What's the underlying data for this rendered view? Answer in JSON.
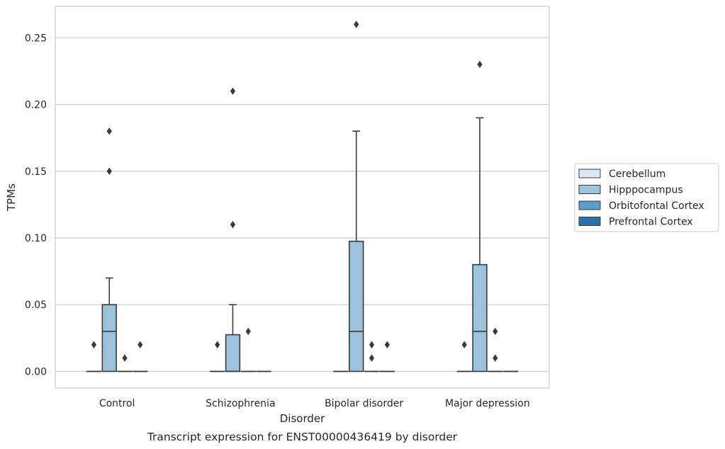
{
  "caption": "Transcript expression for ENST00000436419 by disorder",
  "chart_data": {
    "type": "box",
    "xlabel": "Disorder",
    "ylabel": "TPMs",
    "ylim": [
      -0.0125,
      0.2735
    ],
    "yticks": [
      0.0,
      0.05,
      0.1,
      0.15,
      0.2,
      0.25
    ],
    "ytick_labels": [
      "0.00",
      "0.05",
      "0.10",
      "0.15",
      "0.20",
      "0.25"
    ],
    "grid": true,
    "legend_position": "right",
    "categories": [
      "Control",
      "Schizophrenia",
      "Bipolar disorder",
      "Major depression"
    ],
    "series": [
      {
        "name": "Cerebellum",
        "color": "#dbe9f6",
        "boxes": [
          {
            "q1": 0,
            "median": 0,
            "q3": 0,
            "whislo": 0,
            "whishi": 0,
            "fliers": [
              0.02
            ]
          },
          {
            "q1": 0,
            "median": 0,
            "q3": 0,
            "whislo": 0,
            "whishi": 0,
            "fliers": [
              0.02
            ]
          },
          {
            "q1": 0,
            "median": 0,
            "q3": 0,
            "whislo": 0,
            "whishi": 0,
            "fliers": []
          },
          {
            "q1": 0,
            "median": 0,
            "q3": 0,
            "whislo": 0,
            "whishi": 0,
            "fliers": [
              0.02
            ]
          }
        ]
      },
      {
        "name": "Hipppocampus",
        "color": "#9cc3db",
        "boxes": [
          {
            "q1": 0,
            "median": 0.03,
            "q3": 0.05,
            "whislo": 0,
            "whishi": 0.07,
            "fliers": [
              0.15,
              0.18
            ]
          },
          {
            "q1": 0,
            "median": 0,
            "q3": 0.0275,
            "whislo": 0,
            "whishi": 0.05,
            "fliers": [
              0.11,
              0.21
            ]
          },
          {
            "q1": 0,
            "median": 0.03,
            "q3": 0.0975,
            "whislo": 0,
            "whishi": 0.18,
            "fliers": [
              0.26
            ]
          },
          {
            "q1": 0,
            "median": 0.03,
            "q3": 0.08,
            "whislo": 0,
            "whishi": 0.19,
            "fliers": [
              0.23
            ]
          }
        ]
      },
      {
        "name": "Orbitofontal Cortex",
        "color": "#5b9ec9",
        "boxes": [
          {
            "q1": 0,
            "median": 0,
            "q3": 0,
            "whislo": 0,
            "whishi": 0,
            "fliers": [
              0.01
            ]
          },
          {
            "q1": 0,
            "median": 0,
            "q3": 0,
            "whislo": 0,
            "whishi": 0,
            "fliers": [
              0.03
            ]
          },
          {
            "q1": 0,
            "median": 0,
            "q3": 0,
            "whislo": 0,
            "whishi": 0,
            "fliers": [
              0.01,
              0.02
            ]
          },
          {
            "q1": 0,
            "median": 0,
            "q3": 0,
            "whislo": 0,
            "whishi": 0,
            "fliers": [
              0.01,
              0.03
            ]
          }
        ]
      },
      {
        "name": "Prefrontal Cortex",
        "color": "#2c6fad",
        "boxes": [
          {
            "q1": 0,
            "median": 0,
            "q3": 0,
            "whislo": 0,
            "whishi": 0,
            "fliers": [
              0.02
            ]
          },
          {
            "q1": 0,
            "median": 0,
            "q3": 0,
            "whislo": 0,
            "whishi": 0,
            "fliers": []
          },
          {
            "q1": 0,
            "median": 0,
            "q3": 0,
            "whislo": 0,
            "whishi": 0,
            "fliers": [
              0.02
            ]
          },
          {
            "q1": 0,
            "median": 0,
            "q3": 0,
            "whislo": 0,
            "whishi": 0,
            "fliers": []
          }
        ]
      }
    ]
  }
}
